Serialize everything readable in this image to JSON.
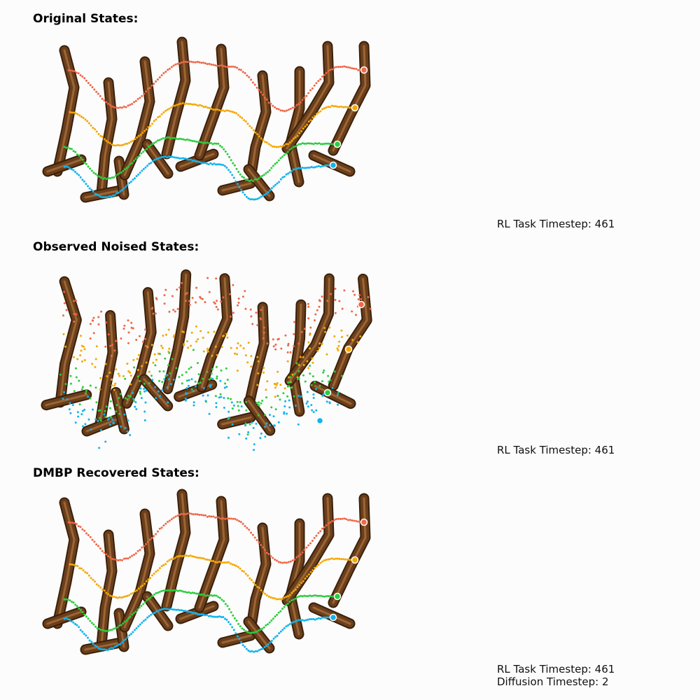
{
  "panels": [
    {
      "title": "Original States:",
      "captions": [
        "RL Task Timestep: 461"
      ],
      "mode": "clean"
    },
    {
      "title": "Observed Noised States:",
      "captions": [
        "RL Task Timestep: 461"
      ],
      "mode": "noised"
    },
    {
      "title": "DMBP Recovered States:",
      "captions": [
        "RL Task Timestep: 461",
        "Diffusion Timestep: 2"
      ],
      "mode": "clean"
    }
  ],
  "colors": {
    "background": "#fcfcfc",
    "limb": "#6b3f1c",
    "limb_highlight": "#a8703c",
    "trajectories": [
      "#f06848",
      "#f5a800",
      "#2ecc40",
      "#12b4f0"
    ]
  },
  "trajectory_names": [
    "red-trajectory",
    "orange-trajectory",
    "green-trajectory",
    "blue-trajectory"
  ]
}
